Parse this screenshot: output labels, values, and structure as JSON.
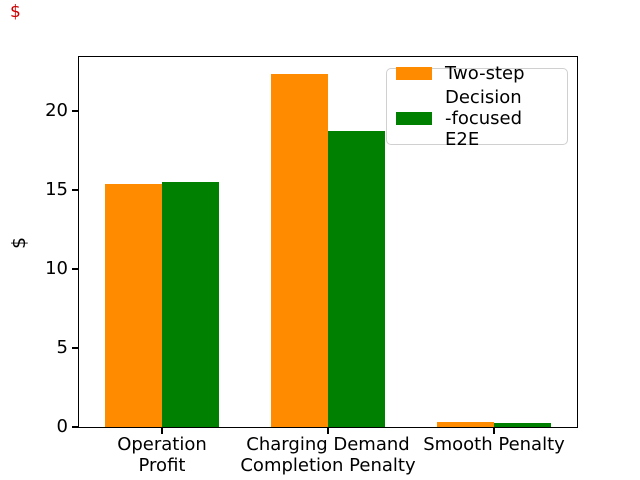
{
  "figure": {
    "stray_dollar": "$",
    "stray_dollar_color": "#cc0000",
    "background": "#ffffff",
    "text_color": "#000000"
  },
  "chart_data": {
    "type": "bar",
    "title": "",
    "xlabel": "",
    "ylabel": "$",
    "categories": [
      "Operation\nProfit",
      "Charging Demand\nCompletion Penalty",
      "Smooth Penalty"
    ],
    "series": [
      {
        "name": "Two-step",
        "color": "#ff8c00",
        "values": [
          15.4,
          22.3,
          0.3
        ]
      },
      {
        "name": "Decision\n-focused E2E",
        "color": "#008000",
        "values": [
          15.5,
          18.7,
          0.25
        ]
      }
    ],
    "yticks": [
      0,
      5,
      10,
      15,
      20
    ],
    "ylim": [
      0,
      23.4
    ],
    "grid": false,
    "bar_width_fraction": 0.343,
    "legend": {
      "position": "upper right",
      "border_color": "#d0d0d0",
      "entries": [
        "Two-step",
        "Decision\n-focused E2E"
      ]
    }
  }
}
